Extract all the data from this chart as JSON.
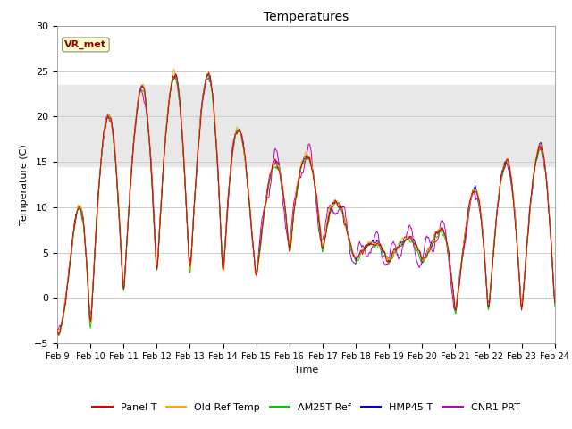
{
  "title": "Temperatures",
  "xlabel": "Time",
  "ylabel": "Temperature (C)",
  "ylim": [
    -5,
    30
  ],
  "yticks": [
    -5,
    0,
    5,
    10,
    15,
    20,
    25,
    30
  ],
  "x_labels": [
    "Feb 9",
    "Feb 10",
    "Feb 11",
    "Feb 12",
    "Feb 13",
    "Feb 14",
    "Feb 15",
    "Feb 16",
    "Feb 17",
    "Feb 18",
    "Feb 19",
    "Feb 20",
    "Feb 21",
    "Feb 22",
    "Feb 23",
    "Feb 24"
  ],
  "shaded_region": [
    14.5,
    23.5
  ],
  "annotation_text": "VR_met",
  "annotation_color": "#880000",
  "annotation_bg": "#ffffcc",
  "series_colors": {
    "Panel T": "#dd0000",
    "Old Ref Temp": "#ffaa00",
    "AM25T Ref": "#00cc00",
    "HMP45 T": "#0000dd",
    "CNR1 PRT": "#bb00bb"
  },
  "series_linewidth": 0.7,
  "grid_color": "#cccccc",
  "background_color": "#ffffff",
  "shaded_color": "#e8e8e8"
}
